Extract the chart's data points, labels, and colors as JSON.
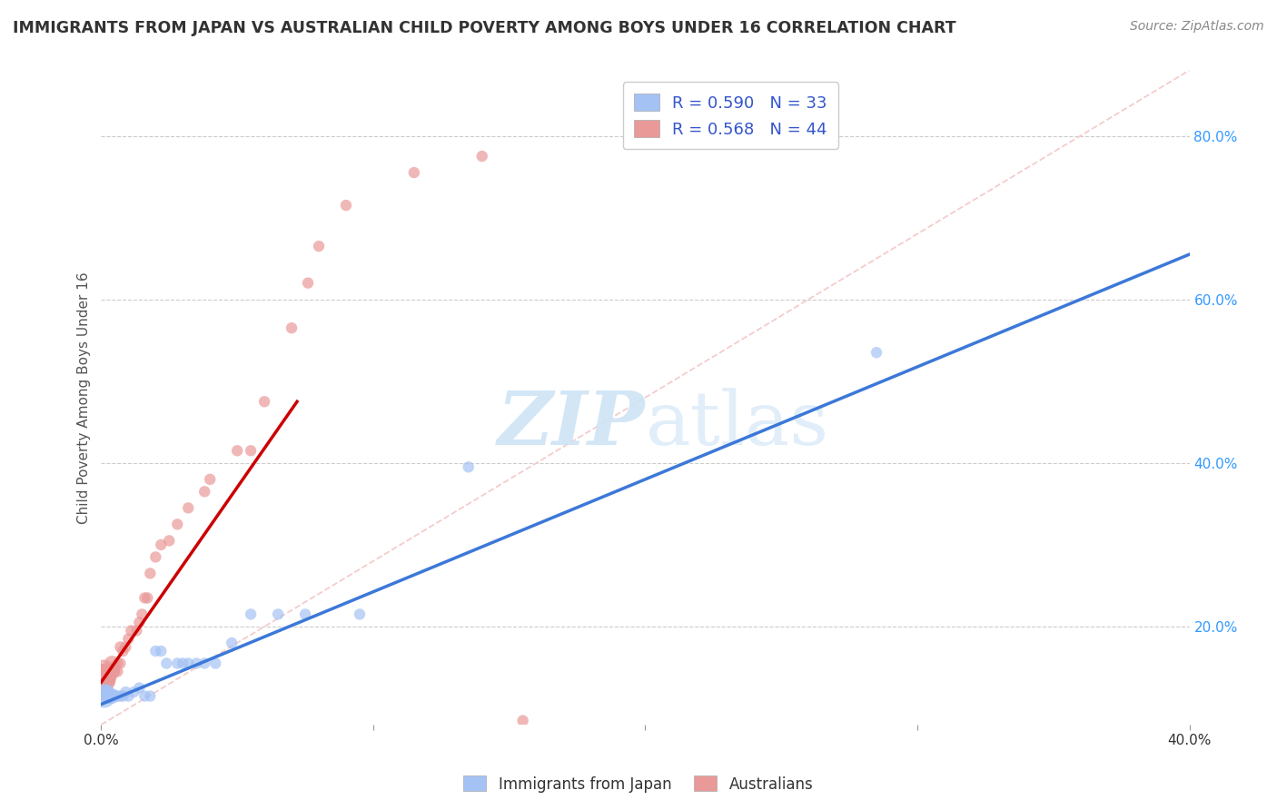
{
  "title": "IMMIGRANTS FROM JAPAN VS AUSTRALIAN CHILD POVERTY AMONG BOYS UNDER 16 CORRELATION CHART",
  "source": "Source: ZipAtlas.com",
  "ylabel": "Child Poverty Among Boys Under 16",
  "xlim": [
    0.0,
    0.4
  ],
  "ylim": [
    0.08,
    0.88
  ],
  "x_ticks": [
    0.0,
    0.1,
    0.2,
    0.3,
    0.4
  ],
  "x_tick_labels": [
    "0.0%",
    "",
    "",
    "",
    "40.0%"
  ],
  "y_ticks_right": [
    0.2,
    0.4,
    0.6,
    0.8
  ],
  "y_tick_labels_right": [
    "20.0%",
    "40.0%",
    "60.0%",
    "80.0%"
  ],
  "blue_color": "#a4c2f4",
  "pink_color": "#ea9999",
  "blue_line_color": "#3c78d8",
  "pink_line_color": "#cc0000",
  "diag_color": "#f4cccc",
  "blue_R": 0.59,
  "blue_N": 33,
  "pink_R": 0.568,
  "pink_N": 44,
  "legend_label_blue": "Immigrants from Japan",
  "legend_label_pink": "Australians",
  "blue_line_x": [
    0.0,
    0.4
  ],
  "blue_line_y": [
    0.105,
    0.655
  ],
  "pink_line_x": [
    0.0,
    0.072
  ],
  "pink_line_y": [
    0.132,
    0.475
  ],
  "diag_line_x": [
    0.0,
    0.4
  ],
  "diag_line_y": [
    0.08,
    0.88
  ],
  "bg_color": "#ffffff",
  "grid_color": "#cccccc",
  "blue_scatter_x": [
    0.001,
    0.002,
    0.002,
    0.003,
    0.003,
    0.004,
    0.005,
    0.005,
    0.006,
    0.007,
    0.008,
    0.009,
    0.01,
    0.012,
    0.014,
    0.016,
    0.018,
    0.02,
    0.022,
    0.024,
    0.028,
    0.03,
    0.032,
    0.035,
    0.038,
    0.042,
    0.048,
    0.055,
    0.065,
    0.075,
    0.095,
    0.135,
    0.285
  ],
  "blue_scatter_y": [
    0.115,
    0.12,
    0.115,
    0.115,
    0.115,
    0.115,
    0.115,
    0.115,
    0.115,
    0.115,
    0.115,
    0.12,
    0.115,
    0.12,
    0.125,
    0.115,
    0.115,
    0.17,
    0.17,
    0.155,
    0.155,
    0.155,
    0.155,
    0.155,
    0.155,
    0.155,
    0.18,
    0.215,
    0.215,
    0.215,
    0.215,
    0.395,
    0.535
  ],
  "pink_scatter_x": [
    0.0,
    0.001,
    0.001,
    0.001,
    0.001,
    0.002,
    0.002,
    0.003,
    0.003,
    0.004,
    0.004,
    0.005,
    0.005,
    0.006,
    0.006,
    0.007,
    0.007,
    0.008,
    0.009,
    0.01,
    0.011,
    0.013,
    0.014,
    0.015,
    0.016,
    0.017,
    0.018,
    0.02,
    0.022,
    0.025,
    0.028,
    0.032,
    0.038,
    0.04,
    0.05,
    0.055,
    0.06,
    0.07,
    0.076,
    0.08,
    0.09,
    0.115,
    0.14,
    0.155
  ],
  "pink_scatter_y": [
    0.14,
    0.135,
    0.14,
    0.145,
    0.135,
    0.14,
    0.135,
    0.14,
    0.145,
    0.155,
    0.145,
    0.145,
    0.15,
    0.155,
    0.145,
    0.155,
    0.175,
    0.17,
    0.175,
    0.185,
    0.195,
    0.195,
    0.205,
    0.215,
    0.235,
    0.235,
    0.265,
    0.285,
    0.3,
    0.305,
    0.325,
    0.345,
    0.365,
    0.38,
    0.415,
    0.415,
    0.475,
    0.565,
    0.62,
    0.665,
    0.715,
    0.755,
    0.775,
    0.085
  ]
}
